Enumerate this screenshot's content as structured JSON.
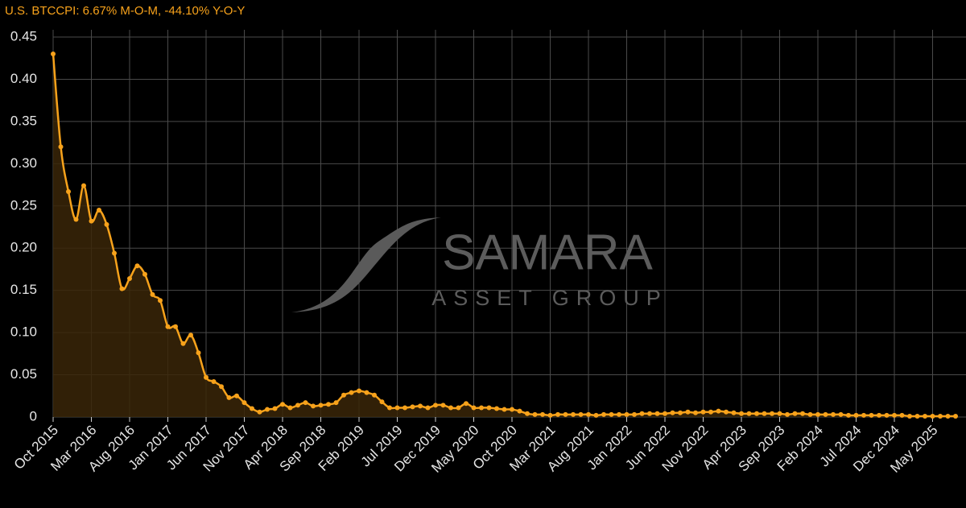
{
  "chart_data": {
    "type": "area-line",
    "title": "U.S. BTCCPI: 6.67% M-O-M, -44.10% Y-O-Y",
    "watermark": [
      "SAMARA",
      "ASSET GROUP"
    ],
    "categories": [
      "Oct 2015",
      null,
      null,
      null,
      null,
      "Mar 2016",
      null,
      null,
      null,
      null,
      "Aug 2016",
      null,
      null,
      null,
      null,
      "Jan 2017",
      null,
      null,
      null,
      null,
      "Jun 2017",
      null,
      null,
      null,
      null,
      "Nov 2017",
      null,
      null,
      null,
      null,
      "Apr 2018",
      null,
      null,
      null,
      null,
      "Sep 2018",
      null,
      null,
      null,
      null,
      "Feb 2019",
      null,
      null,
      null,
      null,
      "Jul 2019",
      null,
      null,
      null,
      null,
      "Dec 2019",
      null,
      null,
      null,
      null,
      "May 2020",
      null,
      null,
      null,
      null,
      "Oct 2020",
      null,
      null,
      null,
      null,
      "Mar 2021",
      null,
      null,
      null,
      null,
      "Aug 2021",
      null,
      null,
      null,
      null,
      "Jan 2022",
      null,
      null,
      null,
      null,
      "Jun 2022",
      null,
      null,
      null,
      null,
      "Nov 2022",
      null,
      null,
      null,
      null,
      "Apr 2023",
      null,
      null,
      null,
      null,
      "Sep 2023",
      null,
      null,
      null,
      null,
      "Feb 2024",
      null,
      null,
      null,
      null,
      "Jul 2024",
      null,
      null,
      null,
      null,
      "Dec 2024",
      null,
      null,
      null,
      null,
      "May 2025",
      null,
      null,
      null
    ],
    "values": [
      0.43,
      0.32,
      0.267,
      0.234,
      0.274,
      0.232,
      0.245,
      0.228,
      0.194,
      0.152,
      0.164,
      0.179,
      0.169,
      0.145,
      0.138,
      0.107,
      0.107,
      0.087,
      0.097,
      0.076,
      0.047,
      0.042,
      0.036,
      0.023,
      0.025,
      0.017,
      0.01,
      0.006,
      0.009,
      0.01,
      0.015,
      0.011,
      0.014,
      0.017,
      0.013,
      0.014,
      0.015,
      0.017,
      0.026,
      0.029,
      0.031,
      0.029,
      0.026,
      0.018,
      0.011,
      0.011,
      0.011,
      0.012,
      0.013,
      0.011,
      0.014,
      0.014,
      0.011,
      0.011,
      0.016,
      0.011,
      0.011,
      0.011,
      0.01,
      0.009,
      0.009,
      0.007,
      0.004,
      0.003,
      0.003,
      0.002,
      0.003,
      0.003,
      0.003,
      0.003,
      0.003,
      0.002,
      0.003,
      0.003,
      0.003,
      0.003,
      0.003,
      0.004,
      0.004,
      0.004,
      0.004,
      0.005,
      0.005,
      0.006,
      0.005,
      0.006,
      0.006,
      0.007,
      0.006,
      0.005,
      0.004,
      0.004,
      0.004,
      0.004,
      0.004,
      0.004,
      0.003,
      0.004,
      0.004,
      0.003,
      0.003,
      0.003,
      0.003,
      0.003,
      0.002,
      0.002,
      0.002,
      0.002,
      0.002,
      0.002,
      0.002,
      0.002,
      0.001,
      0.001,
      0.001,
      0.001,
      0.001,
      0.001,
      0.001
    ],
    "color": "#f7a21b",
    "area_color": "#3a2608",
    "ylim": [
      0,
      0.45
    ],
    "yticks": [
      0,
      0.05,
      {
        "value": 0.1,
        "label": "0.10"
      },
      0.15,
      {
        "value": 0.2,
        "label": "0.20"
      },
      0.25,
      {
        "value": 0.3,
        "label": "0.30"
      },
      0.35,
      {
        "value": 0.4,
        "label": "0.40"
      },
      0.45
    ],
    "grid": true
  }
}
